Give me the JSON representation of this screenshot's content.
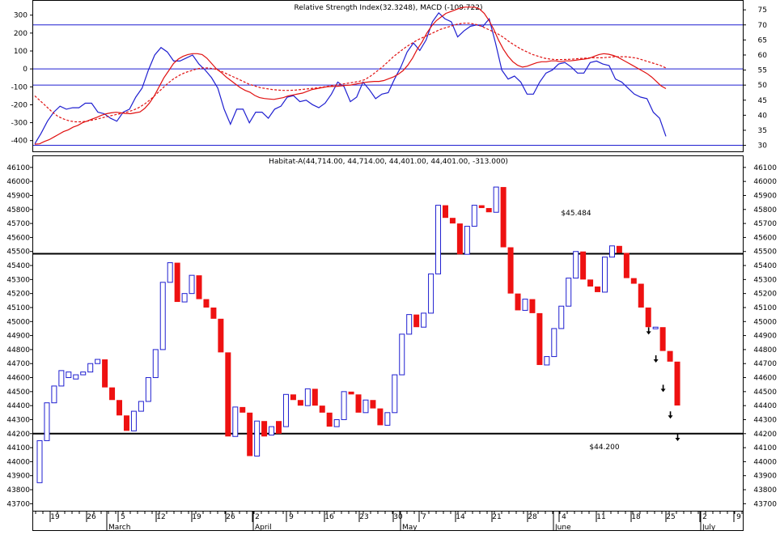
{
  "chart_data": [
    {
      "type": "line",
      "title": "Relative Strength Index(32.3248), MACD (-109.722)",
      "left_axis": {
        "range": [
          -460,
          380
        ],
        "ticks": [
          300,
          200,
          100,
          0,
          -100,
          -200,
          -300,
          -400
        ],
        "labels": [
          "300",
          "200",
          "100",
          "0",
          "-100",
          "-200",
          "-300",
          "-400"
        ]
      },
      "right_axis": {
        "range": [
          28,
          78
        ],
        "ticks": [
          75,
          70,
          65,
          60,
          55,
          50,
          45,
          40,
          35,
          30
        ],
        "labels": [
          "75",
          "70",
          "65",
          "60",
          "55",
          "50",
          "45",
          "40",
          "35",
          "30"
        ]
      },
      "reference_lines": [
        {
          "axis": "right",
          "value": 70
        },
        {
          "axis": "left",
          "value": 0
        },
        {
          "axis": "right",
          "value": 50
        },
        {
          "axis": "right",
          "value": 30
        }
      ],
      "colors": {
        "rsi": "#1f1fd0",
        "macd": "#e01010",
        "signal": "#e01010",
        "ref": "#1f1fd0"
      },
      "series": [
        {
          "key": "rsi",
          "axis": "right",
          "style": "solid",
          "values": [
            30.5,
            34,
            38,
            41,
            43,
            42,
            42.5,
            42.5,
            44,
            44,
            41,
            40.5,
            39,
            38,
            41,
            42,
            46,
            49,
            55,
            60,
            62.5,
            61,
            58,
            58,
            59,
            60,
            57,
            55,
            52.5,
            49,
            42,
            37,
            42,
            42,
            37.5,
            41,
            41,
            39,
            42,
            43,
            46,
            46.5,
            44.5,
            45,
            43.5,
            42.5,
            44,
            47,
            51,
            49.5,
            44.5,
            46,
            51,
            48.5,
            45.5,
            47,
            47.5,
            52,
            56,
            61,
            64,
            61.5,
            65,
            71,
            74,
            72,
            71,
            66,
            68,
            69.5,
            70,
            69.5,
            72,
            64,
            55,
            52,
            53,
            51,
            47,
            47,
            51,
            54,
            55,
            57,
            57.5,
            56,
            54,
            54,
            57.5,
            58,
            57,
            56.5,
            52,
            51,
            49,
            47,
            46,
            45.5,
            41,
            39,
            33
          ]
        },
        {
          "key": "macd",
          "axis": "left",
          "style": "solid",
          "values": [
            -420,
            -418,
            -405,
            -395,
            -380,
            -365,
            -350,
            -340,
            -325,
            -315,
            -300,
            -290,
            -280,
            -270,
            -258,
            -250,
            -245,
            -242,
            -245,
            -248,
            -250,
            -245,
            -240,
            -220,
            -190,
            -150,
            -100,
            -50,
            -10,
            30,
            55,
            70,
            80,
            85,
            85,
            80,
            60,
            30,
            0,
            -20,
            -45,
            -65,
            -85,
            -105,
            -120,
            -130,
            -148,
            -160,
            -165,
            -168,
            -170,
            -165,
            -160,
            -150,
            -145,
            -140,
            -135,
            -125,
            -115,
            -110,
            -105,
            -100,
            -98,
            -98,
            -95,
            -92,
            -90,
            -85,
            -80,
            -75,
            -72,
            -70,
            -70,
            -65,
            -55,
            -45,
            -30,
            -10,
            20,
            60,
            110,
            150,
            200,
            240,
            270,
            290,
            310,
            320,
            330,
            340,
            345,
            345,
            345,
            335,
            310,
            270,
            220,
            160,
            110,
            70,
            40,
            20,
            10,
            15,
            25,
            35,
            40,
            40,
            45,
            45,
            40,
            45,
            45,
            48,
            52,
            55,
            60,
            70,
            80,
            85,
            82,
            75,
            65,
            50,
            35,
            20,
            5,
            -10,
            -25,
            -45,
            -70,
            -95,
            -110
          ]
        },
        {
          "key": "signal",
          "axis": "left",
          "style": "dashed",
          "values": [
            -150,
            -180,
            -210,
            -240,
            -265,
            -280,
            -290,
            -295,
            -295,
            -292,
            -285,
            -278,
            -270,
            -262,
            -255,
            -248,
            -240,
            -230,
            -215,
            -195,
            -170,
            -140,
            -110,
            -80,
            -55,
            -35,
            -20,
            -10,
            0,
            5,
            5,
            0,
            -10,
            -25,
            -40,
            -55,
            -70,
            -85,
            -95,
            -105,
            -110,
            -115,
            -118,
            -120,
            -120,
            -118,
            -115,
            -112,
            -108,
            -105,
            -100,
            -95,
            -90,
            -85,
            -80,
            -75,
            -70,
            -60,
            -40,
            -15,
            10,
            40,
            70,
            95,
            120,
            140,
            160,
            175,
            190,
            205,
            220,
            230,
            240,
            250,
            255,
            255,
            250,
            240,
            225,
            210,
            195,
            175,
            150,
            130,
            110,
            95,
            80,
            70,
            60,
            55,
            52,
            52,
            53,
            55,
            58,
            60,
            62,
            62,
            62,
            65,
            68,
            68,
            68,
            65,
            60,
            50,
            40,
            30,
            20,
            5
          ]
        }
      ]
    },
    {
      "type": "candlestick",
      "title": "Habitat-A(44,714.00, 44,714.00, 44,401.00, 44,401.00, -313.000)",
      "ylim": [
        43650,
        46180
      ],
      "y_ticks": [
        46100,
        46000,
        45900,
        45800,
        45700,
        45600,
        45500,
        45400,
        45300,
        45200,
        45100,
        45000,
        44900,
        44800,
        44700,
        44600,
        44500,
        44400,
        44300,
        44200,
        44100,
        44000,
        43900,
        43800,
        43700
      ],
      "y_labels": [
        "46100",
        "46000",
        "45900",
        "45800",
        "45700",
        "45600",
        "45500",
        "45400",
        "45300",
        "45200",
        "45100",
        "45000",
        "44900",
        "44800",
        "44700",
        "44600",
        "44500",
        "44400",
        "44300",
        "44200",
        "44100",
        "44000",
        "43900",
        "43800",
        "43700"
      ],
      "x_day_labels": [
        "19",
        "26",
        "5",
        "12",
        "19",
        "26",
        "2",
        "9",
        "16",
        "23",
        "30",
        "7",
        "14",
        "21",
        "28",
        "4",
        "11",
        "18",
        "25",
        "2",
        "9"
      ],
      "month_labels": [
        "March",
        "April",
        "May",
        "June",
        "July"
      ],
      "colors": {
        "up": "#1f1fd0",
        "down": "#ee1111",
        "level": "#000000",
        "arrow": "#000000"
      },
      "levels": [
        {
          "value": 45484,
          "label": "$45.484"
        },
        {
          "value": 44200,
          "label": "$44.200"
        }
      ],
      "candles": [
        {
          "open": 43850,
          "close": 44150
        },
        {
          "open": 44150,
          "close": 44420
        },
        {
          "open": 44420,
          "close": 44540
        },
        {
          "open": 44540,
          "close": 44650
        },
        {
          "open": 44600,
          "close": 44640
        },
        {
          "open": 44590,
          "close": 44620
        },
        {
          "open": 44620,
          "close": 44640
        },
        {
          "open": 44640,
          "close": 44700
        },
        {
          "open": 44700,
          "close": 44730
        },
        {
          "open": 44730,
          "close": 44530
        },
        {
          "open": 44530,
          "close": 44440
        },
        {
          "open": 44440,
          "close": 44330
        },
        {
          "open": 44330,
          "close": 44220
        },
        {
          "open": 44220,
          "close": 44360
        },
        {
          "open": 44360,
          "close": 44430
        },
        {
          "open": 44430,
          "close": 44600
        },
        {
          "open": 44600,
          "close": 44800
        },
        {
          "open": 44800,
          "close": 45280
        },
        {
          "open": 45280,
          "close": 45420
        },
        {
          "open": 45420,
          "close": 45140
        },
        {
          "open": 45140,
          "close": 45200
        },
        {
          "open": 45200,
          "close": 45330
        },
        {
          "open": 45330,
          "close": 45160
        },
        {
          "open": 45160,
          "close": 45100
        },
        {
          "open": 45100,
          "close": 45020
        },
        {
          "open": 45020,
          "close": 44780
        },
        {
          "open": 44780,
          "close": 44180
        },
        {
          "open": 44180,
          "close": 44390
        },
        {
          "open": 44390,
          "close": 44350
        },
        {
          "open": 44350,
          "close": 44040
        },
        {
          "open": 44040,
          "close": 44290
        },
        {
          "open": 44290,
          "close": 44180
        },
        {
          "open": 44190,
          "close": 44250
        },
        {
          "open": 44290,
          "close": 44200
        },
        {
          "open": 44250,
          "close": 44480
        },
        {
          "open": 44480,
          "close": 44440
        },
        {
          "open": 44440,
          "close": 44400
        },
        {
          "open": 44400,
          "close": 44520
        },
        {
          "open": 44520,
          "close": 44400
        },
        {
          "open": 44400,
          "close": 44350
        },
        {
          "open": 44350,
          "close": 44250
        },
        {
          "open": 44250,
          "close": 44300
        },
        {
          "open": 44300,
          "close": 44500
        },
        {
          "open": 44500,
          "close": 44480
        },
        {
          "open": 44480,
          "close": 44350
        },
        {
          "open": 44350,
          "close": 44440
        },
        {
          "open": 44440,
          "close": 44380
        },
        {
          "open": 44380,
          "close": 44260
        },
        {
          "open": 44260,
          "close": 44350
        },
        {
          "open": 44350,
          "close": 44620
        },
        {
          "open": 44620,
          "close": 44910
        },
        {
          "open": 44910,
          "close": 45050
        },
        {
          "open": 45050,
          "close": 44960
        },
        {
          "open": 44960,
          "close": 45060
        },
        {
          "open": 45060,
          "close": 45340
        },
        {
          "open": 45340,
          "close": 45830
        },
        {
          "open": 45830,
          "close": 45740
        },
        {
          "open": 45740,
          "close": 45700
        },
        {
          "open": 45700,
          "close": 45480
        },
        {
          "open": 45480,
          "close": 45680
        },
        {
          "open": 45680,
          "close": 45830
        },
        {
          "open": 45830,
          "close": 45810
        },
        {
          "open": 45810,
          "close": 45780
        },
        {
          "open": 45780,
          "close": 45960
        },
        {
          "open": 45960,
          "close": 45530
        },
        {
          "open": 45530,
          "close": 45200
        },
        {
          "open": 45200,
          "close": 45080
        },
        {
          "open": 45080,
          "close": 45160
        },
        {
          "open": 45160,
          "close": 45060
        },
        {
          "open": 45060,
          "close": 44690
        },
        {
          "open": 44690,
          "close": 44750
        },
        {
          "open": 44750,
          "close": 44950
        },
        {
          "open": 44950,
          "close": 45110
        },
        {
          "open": 45110,
          "close": 45310
        },
        {
          "open": 45310,
          "close": 45500
        },
        {
          "open": 45500,
          "close": 45300
        },
        {
          "open": 45300,
          "close": 45250
        },
        {
          "open": 45250,
          "close": 45210
        },
        {
          "open": 45210,
          "close": 45460
        },
        {
          "open": 45460,
          "close": 45540
        },
        {
          "open": 45540,
          "close": 45490
        },
        {
          "open": 45490,
          "close": 45310
        },
        {
          "open": 45310,
          "close": 45270
        },
        {
          "open": 45270,
          "close": 45100
        },
        {
          "open": 45100,
          "close": 44960
        },
        {
          "open": 44960,
          "close": 44960
        },
        {
          "open": 44960,
          "close": 44790
        },
        {
          "open": 44790,
          "close": 44714
        },
        {
          "open": 44714,
          "close": 44401
        }
      ],
      "arrows": [
        {
          "day": 85,
          "value": 44930
        },
        {
          "day": 86,
          "value": 44730
        },
        {
          "day": 87,
          "value": 44520
        },
        {
          "day": 88,
          "value": 44330
        },
        {
          "day": 89,
          "value": 44170
        }
      ]
    }
  ]
}
